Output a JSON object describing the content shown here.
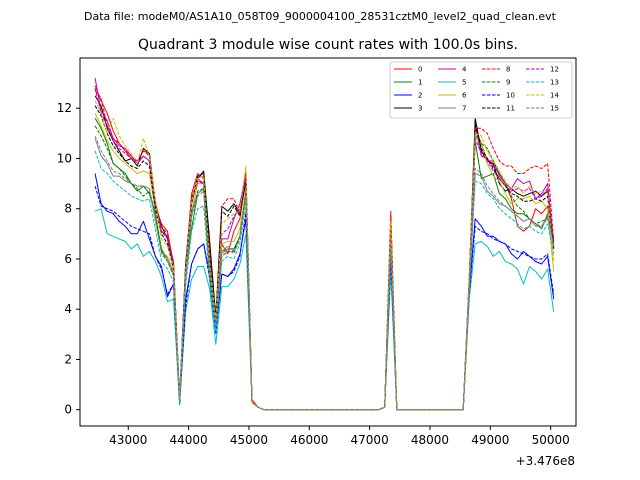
{
  "chart_data": {
    "type": "line",
    "suptitle": "Data file: modeM0/AS1A10_058T09_9000004100_28531cztM0_level2_quad_clean.evt",
    "title": "Quadrant 3 module wise count rates with 100.0s bins.",
    "xlabel": "",
    "ylabel": "",
    "x_offset_label": "+3.476e8",
    "xlim": [
      42200,
      50420
    ],
    "ylim": [
      -0.65,
      14.0
    ],
    "xticks": [
      43000,
      44000,
      45000,
      46000,
      47000,
      48000,
      49000,
      50000
    ],
    "xtick_labels": [
      "43000",
      "44000",
      "45000",
      "46000",
      "47000",
      "48000",
      "49000",
      "50000"
    ],
    "yticks": [
      0,
      2,
      4,
      6,
      8,
      10,
      12
    ],
    "ytick_labels": [
      "0",
      "2",
      "4",
      "6",
      "8",
      "10",
      "12"
    ],
    "legend_position": "top-right",
    "x": [
      42450,
      42550,
      42650,
      42750,
      42850,
      42950,
      43050,
      43150,
      43250,
      43350,
      43450,
      43550,
      43650,
      43750,
      43850,
      43950,
      44050,
      44150,
      44250,
      44350,
      44450,
      44550,
      44650,
      44750,
      44850,
      44950,
      45050,
      45150,
      45250,
      47150,
      47250,
      47350,
      47450,
      47550,
      48550,
      48650,
      48750,
      48850,
      48950,
      49050,
      49150,
      49250,
      49350,
      49450,
      49550,
      49650,
      49750,
      49850,
      49950,
      50050
    ],
    "series": [
      {
        "name": "0",
        "color": "#ff0000",
        "dash": "solid",
        "values": [
          12.9,
          12.3,
          11.8,
          11.1,
          10.6,
          10.3,
          10.0,
          9.9,
          10.3,
          10.2,
          8.1,
          7.4,
          7.1,
          5.8,
          0.4,
          5.6,
          8.6,
          9.4,
          9.2,
          6.2,
          3.6,
          6.6,
          6.2,
          7.1,
          7.6,
          9.4,
          0.4,
          0.1,
          0.0,
          0.0,
          0.1,
          7.7,
          0.0,
          0.0,
          0.0,
          5.0,
          11.2,
          10.6,
          9.9,
          9.9,
          9.3,
          9.0,
          8.4,
          7.3,
          7.1,
          7.3,
          8.0,
          7.8,
          8.1,
          6.8
        ]
      },
      {
        "name": "1",
        "color": "#008000",
        "dash": "solid",
        "values": [
          11.6,
          11.2,
          10.6,
          9.8,
          9.6,
          9.4,
          9.0,
          8.7,
          8.9,
          8.6,
          7.8,
          6.4,
          6.0,
          5.4,
          0.5,
          5.3,
          7.2,
          8.6,
          8.8,
          5.5,
          3.7,
          6.3,
          6.4,
          6.4,
          6.9,
          8.6,
          0.3,
          0.1,
          0.0,
          0.0,
          0.1,
          6.8,
          0.0,
          0.0,
          0.0,
          4.9,
          10.7,
          9.2,
          9.3,
          9.4,
          8.6,
          8.4,
          8.0,
          7.8,
          7.8,
          7.6,
          7.4,
          7.2,
          7.8,
          6.8
        ]
      },
      {
        "name": "2",
        "color": "#0000ff",
        "dash": "solid",
        "values": [
          9.4,
          8.2,
          7.9,
          7.8,
          7.5,
          7.3,
          7.0,
          7.0,
          7.5,
          6.8,
          6.1,
          5.7,
          4.5,
          5.0,
          0.2,
          4.4,
          5.8,
          6.4,
          6.6,
          5.4,
          3.1,
          5.4,
          5.3,
          5.6,
          6.2,
          7.6,
          0.3,
          0.1,
          0.0,
          0.0,
          0.1,
          6.1,
          0.0,
          0.0,
          0.0,
          4.7,
          7.6,
          7.3,
          6.9,
          6.9,
          6.7,
          6.6,
          6.2,
          6.0,
          6.3,
          6.1,
          5.9,
          5.8,
          6.1,
          4.4
        ]
      },
      {
        "name": "3",
        "color": "#000000",
        "dash": "solid",
        "values": [
          12.5,
          12.1,
          11.2,
          10.7,
          10.3,
          9.9,
          10.0,
          9.7,
          10.4,
          10.2,
          8.2,
          7.3,
          6.8,
          5.7,
          0.3,
          5.8,
          8.4,
          9.2,
          9.5,
          6.7,
          3.7,
          8.1,
          7.9,
          8.2,
          7.8,
          9.1,
          0.3,
          0.1,
          0.0,
          0.0,
          0.1,
          7.3,
          0.0,
          0.0,
          0.0,
          5.1,
          11.6,
          10.3,
          9.9,
          9.8,
          9.0,
          8.7,
          8.8,
          8.6,
          8.5,
          8.6,
          8.7,
          8.5,
          8.7,
          6.4
        ]
      },
      {
        "name": "4",
        "color": "#bf00bf",
        "dash": "solid",
        "values": [
          13.2,
          11.9,
          11.5,
          10.8,
          10.5,
          10.4,
          10.1,
          9.8,
          10.1,
          9.9,
          8.3,
          7.1,
          6.9,
          5.9,
          0.4,
          5.7,
          8.4,
          9.2,
          9.0,
          5.9,
          3.6,
          6.8,
          6.8,
          7.6,
          8.2,
          9.4,
          0.3,
          0.1,
          0.0,
          0.0,
          0.1,
          7.1,
          0.0,
          0.0,
          0.0,
          5.2,
          11.3,
          10.1,
          10.0,
          9.7,
          9.4,
          9.0,
          8.8,
          9.2,
          9.0,
          9.1,
          8.4,
          8.6,
          9.0,
          6.5
        ]
      },
      {
        "name": "5",
        "color": "#00bfbf",
        "dash": "solid",
        "values": [
          7.9,
          8.0,
          7.0,
          6.9,
          6.8,
          6.7,
          6.4,
          6.6,
          6.1,
          6.3,
          5.9,
          5.3,
          4.3,
          4.4,
          0.2,
          3.9,
          5.2,
          5.7,
          5.7,
          4.8,
          2.6,
          4.9,
          4.9,
          5.2,
          5.8,
          7.0,
          0.3,
          0.1,
          0.0,
          0.0,
          0.1,
          5.5,
          0.0,
          0.0,
          0.0,
          4.4,
          6.6,
          6.7,
          6.5,
          6.1,
          6.3,
          5.9,
          5.8,
          5.6,
          5.0,
          5.7,
          5.5,
          5.2,
          5.6,
          3.9
        ]
      },
      {
        "name": "6",
        "color": "#bfbf00",
        "dash": "solid",
        "values": [
          11.8,
          11.3,
          10.7,
          10.3,
          10.0,
          9.8,
          9.6,
          9.4,
          9.5,
          9.4,
          7.9,
          6.3,
          6.1,
          5.5,
          0.4,
          5.3,
          7.9,
          9.0,
          9.0,
          5.4,
          3.4,
          6.6,
          6.7,
          6.7,
          7.2,
          8.8,
          0.3,
          0.1,
          0.0,
          0.0,
          0.1,
          7.4,
          0.0,
          0.0,
          0.0,
          5.3,
          10.9,
          10.6,
          9.8,
          9.3,
          9.1,
          8.6,
          8.2,
          8.4,
          8.4,
          8.5,
          8.2,
          8.3,
          8.0,
          5.5
        ]
      },
      {
        "name": "7",
        "color": "#808080",
        "dash": "solid",
        "values": [
          10.8,
          10.1,
          9.8,
          9.3,
          9.3,
          9.1,
          9.0,
          8.9,
          8.9,
          8.8,
          7.6,
          6.3,
          6.0,
          5.4,
          0.4,
          5.2,
          7.9,
          8.6,
          8.8,
          5.3,
          3.3,
          6.3,
          6.5,
          6.3,
          6.9,
          8.6,
          0.3,
          0.1,
          0.0,
          0.0,
          0.1,
          6.7,
          0.0,
          0.0,
          0.0,
          4.8,
          9.4,
          9.3,
          8.7,
          8.5,
          8.2,
          8.1,
          7.9,
          7.7,
          7.5,
          7.6,
          7.3,
          7.3,
          7.7,
          6.6
        ]
      },
      {
        "name": "8",
        "color": "#ff0000",
        "dash": "dashed",
        "values": [
          12.7,
          12.4,
          11.3,
          10.8,
          10.6,
          10.3,
          10.1,
          9.9,
          10.3,
          10.1,
          8.2,
          7.3,
          7.0,
          5.8,
          0.3,
          5.6,
          8.4,
          9.1,
          9.0,
          6.1,
          3.5,
          8.1,
          8.4,
          8.4,
          7.8,
          9.5,
          0.3,
          0.1,
          0.0,
          0.0,
          0.1,
          7.9,
          0.0,
          0.0,
          0.0,
          5.1,
          11.2,
          11.2,
          11.0,
          10.4,
          9.9,
          9.7,
          9.7,
          9.4,
          9.4,
          9.6,
          9.7,
          9.6,
          9.8,
          6.7
        ]
      },
      {
        "name": "9",
        "color": "#008000",
        "dash": "dashed",
        "values": [
          11.3,
          10.9,
          10.4,
          9.8,
          9.6,
          9.3,
          9.0,
          8.8,
          8.5,
          8.7,
          7.8,
          6.3,
          5.9,
          5.4,
          0.4,
          5.4,
          7.7,
          8.7,
          8.8,
          5.4,
          3.5,
          6.1,
          6.3,
          6.3,
          6.9,
          8.6,
          0.3,
          0.1,
          0.0,
          0.0,
          0.1,
          6.6,
          0.0,
          0.0,
          0.0,
          5.0,
          10.9,
          10.6,
          10.4,
          9.9,
          9.4,
          9.0,
          8.5,
          8.1,
          7.9,
          7.6,
          7.4,
          7.5,
          7.6,
          6.9
        ]
      },
      {
        "name": "10",
        "color": "#0000ff",
        "dash": "dashed",
        "values": [
          8.9,
          8.1,
          8.0,
          7.9,
          7.7,
          7.5,
          7.3,
          7.2,
          7.1,
          7.0,
          6.1,
          5.6,
          4.6,
          5.0,
          0.3,
          4.1,
          5.8,
          6.4,
          6.6,
          5.2,
          3.0,
          5.4,
          5.3,
          5.5,
          6.1,
          7.9,
          0.3,
          0.1,
          0.0,
          0.0,
          0.1,
          6.0,
          0.0,
          0.0,
          0.0,
          4.6,
          7.3,
          7.1,
          7.0,
          6.8,
          6.7,
          6.6,
          6.4,
          6.3,
          6.2,
          6.1,
          6.0,
          6.0,
          6.2,
          4.6
        ]
      },
      {
        "name": "11",
        "color": "#000000",
        "dash": "dashed",
        "values": [
          12.1,
          11.7,
          11.0,
          10.5,
          10.2,
          9.9,
          9.7,
          9.6,
          9.9,
          9.7,
          8.0,
          7.0,
          6.6,
          5.6,
          0.3,
          5.6,
          8.2,
          9.3,
          9.4,
          6.0,
          3.6,
          7.9,
          7.7,
          8.1,
          7.7,
          9.1,
          0.3,
          0.1,
          0.0,
          0.0,
          0.1,
          7.3,
          0.0,
          0.0,
          0.0,
          5.1,
          11.4,
          10.4,
          10.0,
          9.6,
          9.2,
          8.9,
          8.6,
          8.5,
          8.3,
          8.3,
          8.4,
          8.3,
          8.5,
          6.5
        ]
      },
      {
        "name": "12",
        "color": "#bf00bf",
        "dash": "dashed",
        "values": [
          12.8,
          11.8,
          11.3,
          10.7,
          10.4,
          10.2,
          10.0,
          9.8,
          10.1,
          9.9,
          8.2,
          7.1,
          6.8,
          5.8,
          0.4,
          5.6,
          8.2,
          9.1,
          9.0,
          6.1,
          3.5,
          7.0,
          7.2,
          7.7,
          8.0,
          9.2,
          0.3,
          0.1,
          0.0,
          0.0,
          0.1,
          7.1,
          0.0,
          0.0,
          0.0,
          5.2,
          10.8,
          10.2,
          9.9,
          9.5,
          9.2,
          8.9,
          8.7,
          8.8,
          8.7,
          8.8,
          8.4,
          8.5,
          8.8,
          6.6
        ]
      },
      {
        "name": "13",
        "color": "#00bfbf",
        "dash": "dashed",
        "values": [
          10.3,
          9.6,
          9.4,
          9.1,
          8.9,
          8.7,
          8.5,
          8.4,
          8.3,
          8.4,
          7.2,
          5.9,
          5.6,
          5.1,
          0.3,
          4.9,
          7.1,
          8.0,
          8.1,
          5.1,
          3.1,
          5.9,
          6.1,
          6.0,
          6.6,
          8.3,
          0.3,
          0.1,
          0.0,
          0.0,
          0.1,
          6.4,
          0.0,
          0.0,
          0.0,
          4.7,
          9.1,
          9.0,
          8.6,
          8.4,
          8.0,
          7.8,
          7.6,
          7.4,
          7.2,
          7.3,
          7.1,
          7.0,
          7.4,
          6.2
        ]
      },
      {
        "name": "14",
        "color": "#bfbf00",
        "dash": "dashed",
        "values": [
          12.3,
          11.8,
          11.0,
          11.6,
          10.9,
          10.5,
          10.2,
          9.8,
          10.8,
          10.1,
          8.3,
          6.8,
          6.5,
          5.7,
          0.4,
          5.5,
          8.3,
          9.2,
          9.3,
          5.8,
          3.6,
          7.4,
          7.6,
          7.8,
          7.9,
          9.7,
          0.3,
          0.1,
          0.0,
          0.0,
          0.1,
          7.5,
          0.0,
          0.0,
          0.0,
          5.3,
          11.0,
          10.9,
          10.3,
          9.9,
          9.5,
          9.1,
          8.8,
          8.9,
          8.6,
          8.9,
          8.6,
          8.7,
          8.6,
          5.9
        ]
      },
      {
        "name": "15",
        "color": "#808080",
        "dash": "dashed",
        "values": [
          10.9,
          10.3,
          9.9,
          9.5,
          9.4,
          9.2,
          9.0,
          8.9,
          8.9,
          8.8,
          7.5,
          6.2,
          5.9,
          5.3,
          0.4,
          5.1,
          7.7,
          8.5,
          8.7,
          5.3,
          3.3,
          6.2,
          6.4,
          6.2,
          6.8,
          8.5,
          0.3,
          0.1,
          0.0,
          0.0,
          0.1,
          6.6,
          0.0,
          0.0,
          0.0,
          4.8,
          9.6,
          9.4,
          8.9,
          8.6,
          8.3,
          8.1,
          7.9,
          7.7,
          7.5,
          7.6,
          7.4,
          7.3,
          7.6,
          6.5
        ]
      }
    ]
  }
}
